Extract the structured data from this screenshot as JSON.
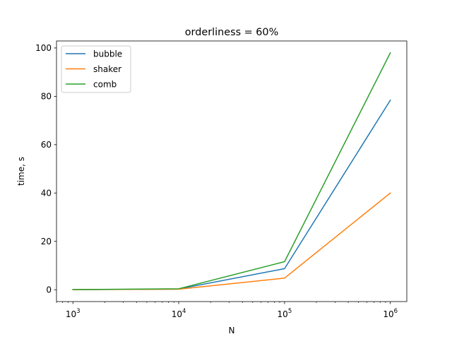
{
  "chart_data": {
    "type": "line",
    "title": "orderliness = 60%",
    "xlabel": "N",
    "ylabel": "time, s",
    "xscale": "log",
    "x": [
      1000,
      10000,
      100000,
      1000000
    ],
    "xticks": [
      {
        "base": "10",
        "exp": "3"
      },
      {
        "base": "10",
        "exp": "4"
      },
      {
        "base": "10",
        "exp": "5"
      },
      {
        "base": "10",
        "exp": "6"
      }
    ],
    "yticks": [
      "0",
      "20",
      "40",
      "60",
      "80",
      "100"
    ],
    "ytick_values": [
      0,
      20,
      40,
      60,
      80,
      100
    ],
    "xlim": [
      700,
      1430000
    ],
    "ylim": [
      -4.9,
      102.9
    ],
    "grid": false,
    "legend_position": "upper-left",
    "series": [
      {
        "name": "bubble",
        "color": "#1f77b4",
        "values": [
          0.05,
          0.3,
          8.7,
          78.4
        ]
      },
      {
        "name": "shaker",
        "color": "#ff7f0e",
        "values": [
          0.03,
          0.2,
          4.8,
          40.0
        ]
      },
      {
        "name": "comb",
        "color": "#2ca02c",
        "values": [
          0.06,
          0.4,
          11.6,
          98.0
        ]
      }
    ]
  }
}
